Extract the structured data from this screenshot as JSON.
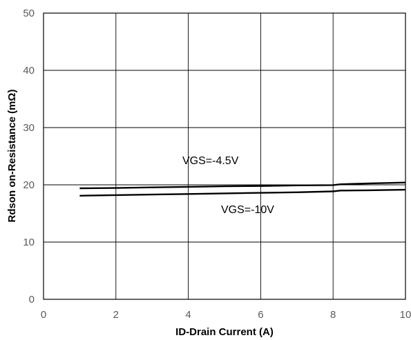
{
  "chart_data": {
    "type": "line",
    "xlabel": "ID-Drain Current (A)",
    "ylabel": "Rdson on-Resistance (mΩ)",
    "xlim": [
      0,
      10
    ],
    "ylim": [
      0,
      50
    ],
    "x_ticks": [
      "0",
      "2",
      "4",
      "6",
      "8",
      "10"
    ],
    "y_ticks": [
      "0",
      "10",
      "20",
      "30",
      "40",
      "50"
    ],
    "grid": true,
    "series": [
      {
        "name": "VGS=-4.5V",
        "x": [
          1,
          2,
          3,
          4,
          5,
          6,
          7,
          8,
          8.2,
          9,
          10
        ],
        "y": [
          19.4,
          19.45,
          19.55,
          19.65,
          19.75,
          19.8,
          19.9,
          19.95,
          20.1,
          20.25,
          20.4
        ]
      },
      {
        "name": "VGS=-10V",
        "x": [
          1,
          2,
          3,
          4,
          5,
          6,
          7,
          8,
          8.2,
          9,
          10
        ],
        "y": [
          18.1,
          18.2,
          18.3,
          18.4,
          18.5,
          18.6,
          18.7,
          18.85,
          19.0,
          19.05,
          19.15
        ]
      }
    ],
    "annotations": [
      "VGS=-4.5V",
      "VGS=-10V"
    ],
    "colors": {
      "series": "#000000",
      "grid": "#000000",
      "frame": "#000000",
      "tick_text": "#595959"
    }
  }
}
